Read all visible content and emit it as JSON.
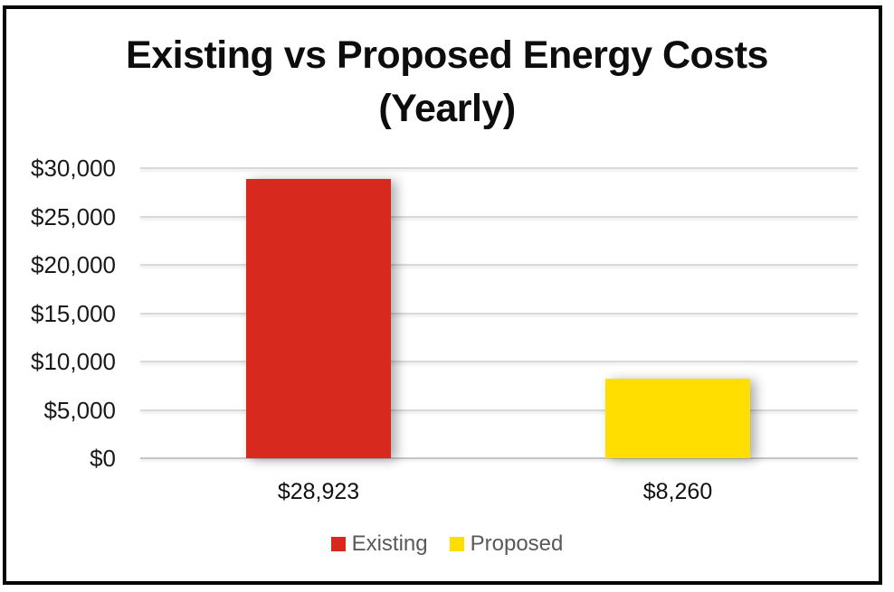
{
  "chart_data": {
    "type": "bar",
    "title": "Existing vs Proposed Energy Costs (Yearly)",
    "title_lines": [
      "Existing vs Proposed Energy Costs",
      "(Yearly)"
    ],
    "categories": [
      "Existing",
      "Proposed"
    ],
    "values": [
      28923,
      8260
    ],
    "bar_labels": [
      "$28,923",
      "$8,260"
    ],
    "bar_colors": [
      "#D7291D",
      "#FFDE00"
    ],
    "xlabel": "",
    "ylabel": "",
    "ylim": [
      0,
      30000
    ],
    "ytick_step": 5000,
    "ytick_labels": [
      "$0",
      "$5,000",
      "$10,000",
      "$15,000",
      "$20,000",
      "$25,000",
      "$30,000"
    ],
    "grid": true,
    "legend_position": "bottom",
    "legend_entries": [
      {
        "label": "Existing",
        "color": "#D7291D"
      },
      {
        "label": "Proposed",
        "color": "#FFDE00"
      }
    ]
  },
  "colors": {
    "background": "#FFFFFF",
    "frame_border": "#050505",
    "gridline": "#D9D9D9",
    "axis_baseline": "#C6C6C6",
    "title_text": "#0D0D0D",
    "tick_label_text": "#1A1A1A",
    "data_label_text": "#111111",
    "legend_text": "#595959"
  }
}
